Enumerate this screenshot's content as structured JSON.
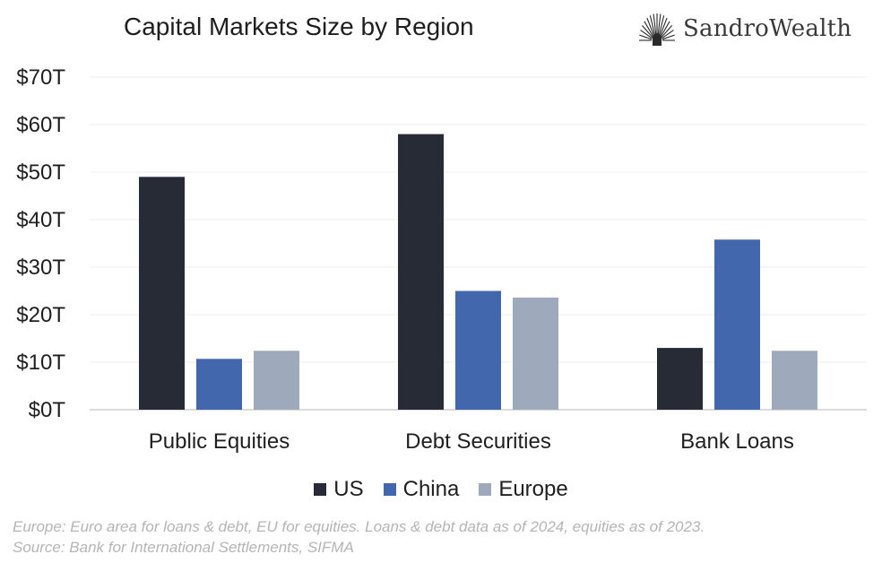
{
  "chart_data": {
    "type": "bar",
    "title": "Capital Markets Size by Region",
    "categories": [
      "Public Equities",
      "Debt Securities",
      "Bank Loans"
    ],
    "series": [
      {
        "name": "US",
        "color": "#262b35",
        "values": [
          49,
          58,
          13
        ]
      },
      {
        "name": "China",
        "color": "#4367ad",
        "values": [
          10.7,
          25,
          35.8
        ]
      },
      {
        "name": "Europe",
        "color": "#9ea9bc",
        "values": [
          12.4,
          23.6,
          12.4
        ]
      }
    ],
    "ylim": [
      0,
      70
    ],
    "yticks": [
      0,
      10,
      20,
      30,
      40,
      50,
      60,
      70
    ],
    "ytick_labels": [
      "$0T",
      "$10T",
      "$20T",
      "$30T",
      "$40T",
      "$50T",
      "$60T",
      "$70T"
    ],
    "xlabel": "",
    "ylabel": "",
    "grid": true,
    "legend_position": "bottom"
  },
  "brand": {
    "name": "SandroWealth",
    "icon": "sunburst-logo-icon"
  },
  "footnote": {
    "line1": "Europe: Euro area for loans & debt, EU for equities. Loans & debt data as of 2024, equities as of 2023.",
    "line2": "Source:  Bank for International Settlements, SIFMA"
  }
}
